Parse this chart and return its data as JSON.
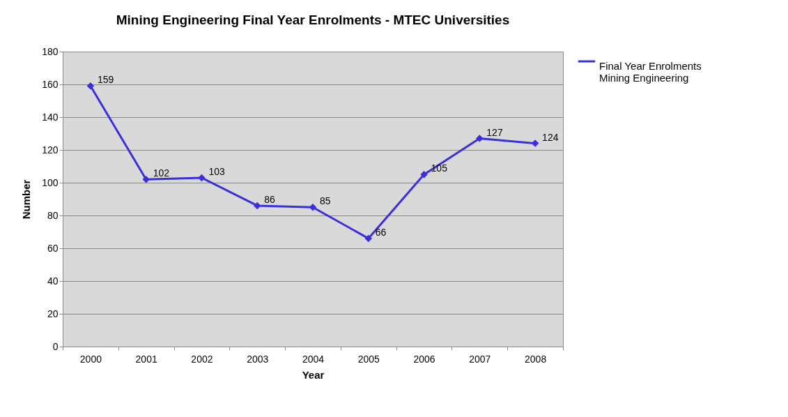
{
  "chart_data": {
    "type": "line",
    "title": "Mining Engineering Final Year Enrolments - MTEC Universities",
    "xlabel": "Year",
    "ylabel": "Number",
    "categories": [
      "2000",
      "2001",
      "2002",
      "2003",
      "2004",
      "2005",
      "2006",
      "2007",
      "2008"
    ],
    "series": [
      {
        "name": "Final Year Enrolments Mining Engineering",
        "color": "#3a2fe0",
        "values": [
          159,
          102,
          103,
          86,
          85,
          66,
          105,
          127,
          124
        ]
      }
    ],
    "ylim": [
      0,
      180
    ],
    "yticks": [
      0,
      20,
      40,
      60,
      80,
      100,
      120,
      140,
      160,
      180
    ],
    "grid": "y",
    "legend": "right",
    "marker": "diamond",
    "line_style": "solid",
    "data_labels": true
  }
}
